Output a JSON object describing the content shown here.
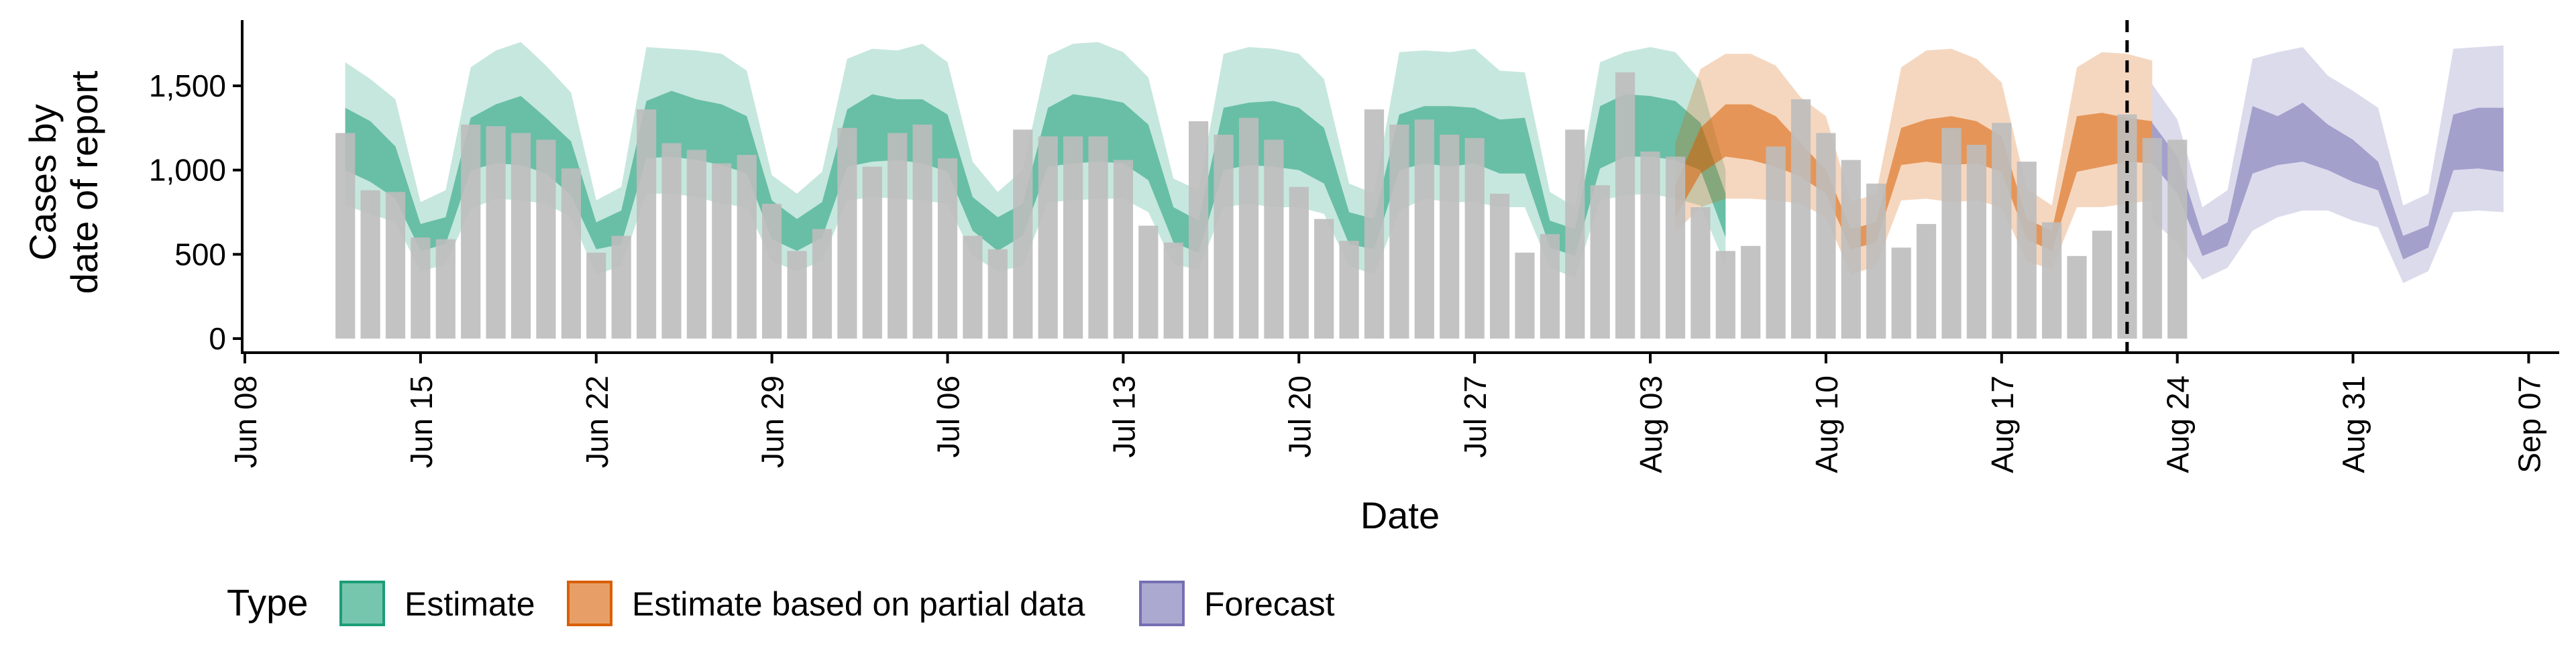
{
  "chart_data": {
    "type": "bar",
    "xlabel": "Date",
    "ylabel_lines": [
      "Cases by",
      "date of report"
    ],
    "ylim": [
      0,
      1800
    ],
    "yticks": [
      0,
      500,
      1000,
      1500
    ],
    "ytick_labels": [
      "0",
      "500",
      "1,000",
      "1,500"
    ],
    "xticks": [
      "2020-06-08",
      "2020-06-15",
      "2020-06-22",
      "2020-06-29",
      "2020-07-06",
      "2020-07-13",
      "2020-07-20",
      "2020-07-27",
      "2020-08-03",
      "2020-08-10",
      "2020-08-17",
      "2020-08-24",
      "2020-08-31",
      "2020-09-07"
    ],
    "xtick_labels": [
      "Jun 08",
      "Jun 15",
      "Jun 22",
      "Jun 29",
      "Jul 06",
      "Jul 13",
      "Jul 20",
      "Jul 27",
      "Aug 03",
      "Aug 10",
      "Aug 17",
      "Aug 24",
      "Aug 31",
      "Sep 07"
    ],
    "xlim": [
      "2020-06-08",
      "2020-09-07"
    ],
    "cutoff_date": "2020-08-22",
    "reported_cases": {
      "start_date": "2020-06-12",
      "color": "#bdbdbd",
      "values": [
        1220,
        880,
        870,
        600,
        590,
        1270,
        1260,
        1220,
        1180,
        1010,
        510,
        610,
        1360,
        1160,
        1120,
        1040,
        1090,
        800,
        520,
        650,
        1250,
        1020,
        1220,
        1270,
        1070,
        610,
        530,
        1240,
        1200,
        1200,
        1200,
        1060,
        670,
        570,
        1290,
        1210,
        1310,
        1180,
        900,
        710,
        580,
        1360,
        1270,
        1300,
        1210,
        1190,
        860,
        510,
        620,
        1240,
        910,
        1580,
        1110,
        1080,
        780,
        520,
        550,
        1140,
        1420,
        1220,
        1060,
        920,
        540,
        680,
        1250,
        1150,
        1280,
        1050,
        690,
        490,
        640,
        1330,
        1190,
        1180
      ]
    },
    "series": [
      {
        "name": "Estimate",
        "color": "#1b9e77",
        "start_date": "2020-06-12",
        "outer_lower": [
          790,
          740,
          690,
          400,
          440,
          770,
          830,
          820,
          800,
          720,
          380,
          430,
          860,
          860,
          840,
          800,
          780,
          460,
          400,
          460,
          820,
          840,
          830,
          820,
          800,
          490,
          400,
          430,
          810,
          820,
          830,
          830,
          750,
          440,
          410,
          780,
          800,
          780,
          780,
          740,
          430,
          380,
          760,
          830,
          810,
          810,
          780,
          780,
          420,
          360,
          820,
          850,
          860,
          830,
          790,
          430
        ],
        "inner_lower": [
          1000,
          930,
          830,
          520,
          560,
          1000,
          1040,
          1030,
          980,
          850,
          530,
          560,
          1070,
          1080,
          1060,
          1030,
          980,
          590,
          520,
          600,
          1020,
          1050,
          1060,
          1040,
          990,
          640,
          520,
          610,
          1020,
          1040,
          1050,
          1040,
          940,
          570,
          510,
          1000,
          1030,
          1020,
          1000,
          920,
          560,
          530,
          1000,
          1040,
          1020,
          1040,
          980,
          980,
          540,
          490,
          1010,
          1080,
          1080,
          1060,
          1000,
          600
        ],
        "inner_upper": [
          1370,
          1290,
          1140,
          680,
          720,
          1310,
          1390,
          1440,
          1310,
          1170,
          690,
          760,
          1410,
          1470,
          1420,
          1390,
          1320,
          820,
          710,
          810,
          1360,
          1450,
          1420,
          1420,
          1330,
          840,
          720,
          800,
          1370,
          1450,
          1430,
          1400,
          1270,
          780,
          700,
          1370,
          1400,
          1410,
          1370,
          1250,
          750,
          710,
          1330,
          1380,
          1380,
          1370,
          1300,
          1310,
          700,
          650,
          1380,
          1450,
          1440,
          1410,
          1280,
          860
        ],
        "outer_upper": [
          1640,
          1540,
          1420,
          810,
          880,
          1610,
          1710,
          1760,
          1620,
          1460,
          820,
          900,
          1730,
          1720,
          1710,
          1690,
          1590,
          970,
          860,
          990,
          1660,
          1720,
          1710,
          1750,
          1640,
          1050,
          870,
          1000,
          1680,
          1750,
          1760,
          1700,
          1550,
          950,
          880,
          1690,
          1730,
          1720,
          1690,
          1540,
          920,
          860,
          1700,
          1710,
          1700,
          1720,
          1590,
          1580,
          870,
          780,
          1640,
          1700,
          1730,
          1700,
          1530,
          1000
        ]
      },
      {
        "name": "Estimate based on partial data",
        "color": "#d95f02",
        "start_date": "2020-08-04",
        "outer_lower": [
          630,
          780,
          830,
          830,
          820,
          800,
          720,
          380,
          430,
          820,
          830,
          810,
          820,
          780,
          460,
          410,
          780,
          780,
          800,
          820
        ],
        "inner_lower": [
          720,
          980,
          1080,
          1060,
          1020,
          960,
          860,
          530,
          570,
          1030,
          1050,
          1030,
          1040,
          990,
          590,
          520,
          990,
          1020,
          1050,
          1040
        ],
        "inner_upper": [
          910,
          1250,
          1390,
          1390,
          1320,
          1160,
          1000,
          650,
          690,
          1250,
          1300,
          1320,
          1290,
          1200,
          710,
          640,
          1320,
          1340,
          1310,
          1290
        ],
        "outer_upper": [
          1160,
          1600,
          1690,
          1690,
          1620,
          1430,
          1320,
          810,
          860,
          1610,
          1710,
          1720,
          1660,
          1520,
          890,
          790,
          1610,
          1700,
          1690,
          1650
        ]
      },
      {
        "name": "Forecast",
        "color": "#7570b3",
        "start_date": "2020-08-23",
        "outer_lower": [
          700,
          570,
          350,
          420,
          640,
          720,
          760,
          760,
          700,
          660,
          330,
          400,
          750,
          760,
          750
        ],
        "inner_lower": [
          1040,
          860,
          490,
          550,
          980,
          1030,
          1050,
          1000,
          930,
          880,
          470,
          540,
          1000,
          1010,
          990
        ],
        "inner_upper": [
          1280,
          1080,
          610,
          690,
          1380,
          1320,
          1400,
          1270,
          1180,
          1050,
          610,
          670,
          1330,
          1370,
          1370
        ],
        "outer_upper": [
          1510,
          1300,
          780,
          880,
          1660,
          1700,
          1730,
          1560,
          1470,
          1370,
          790,
          860,
          1720,
          1730,
          1740
        ]
      }
    ],
    "legend_title": "Type",
    "legend_position": "bottom",
    "legend": [
      "Estimate",
      "Estimate based on partial data",
      "Forecast"
    ],
    "grid": false
  }
}
